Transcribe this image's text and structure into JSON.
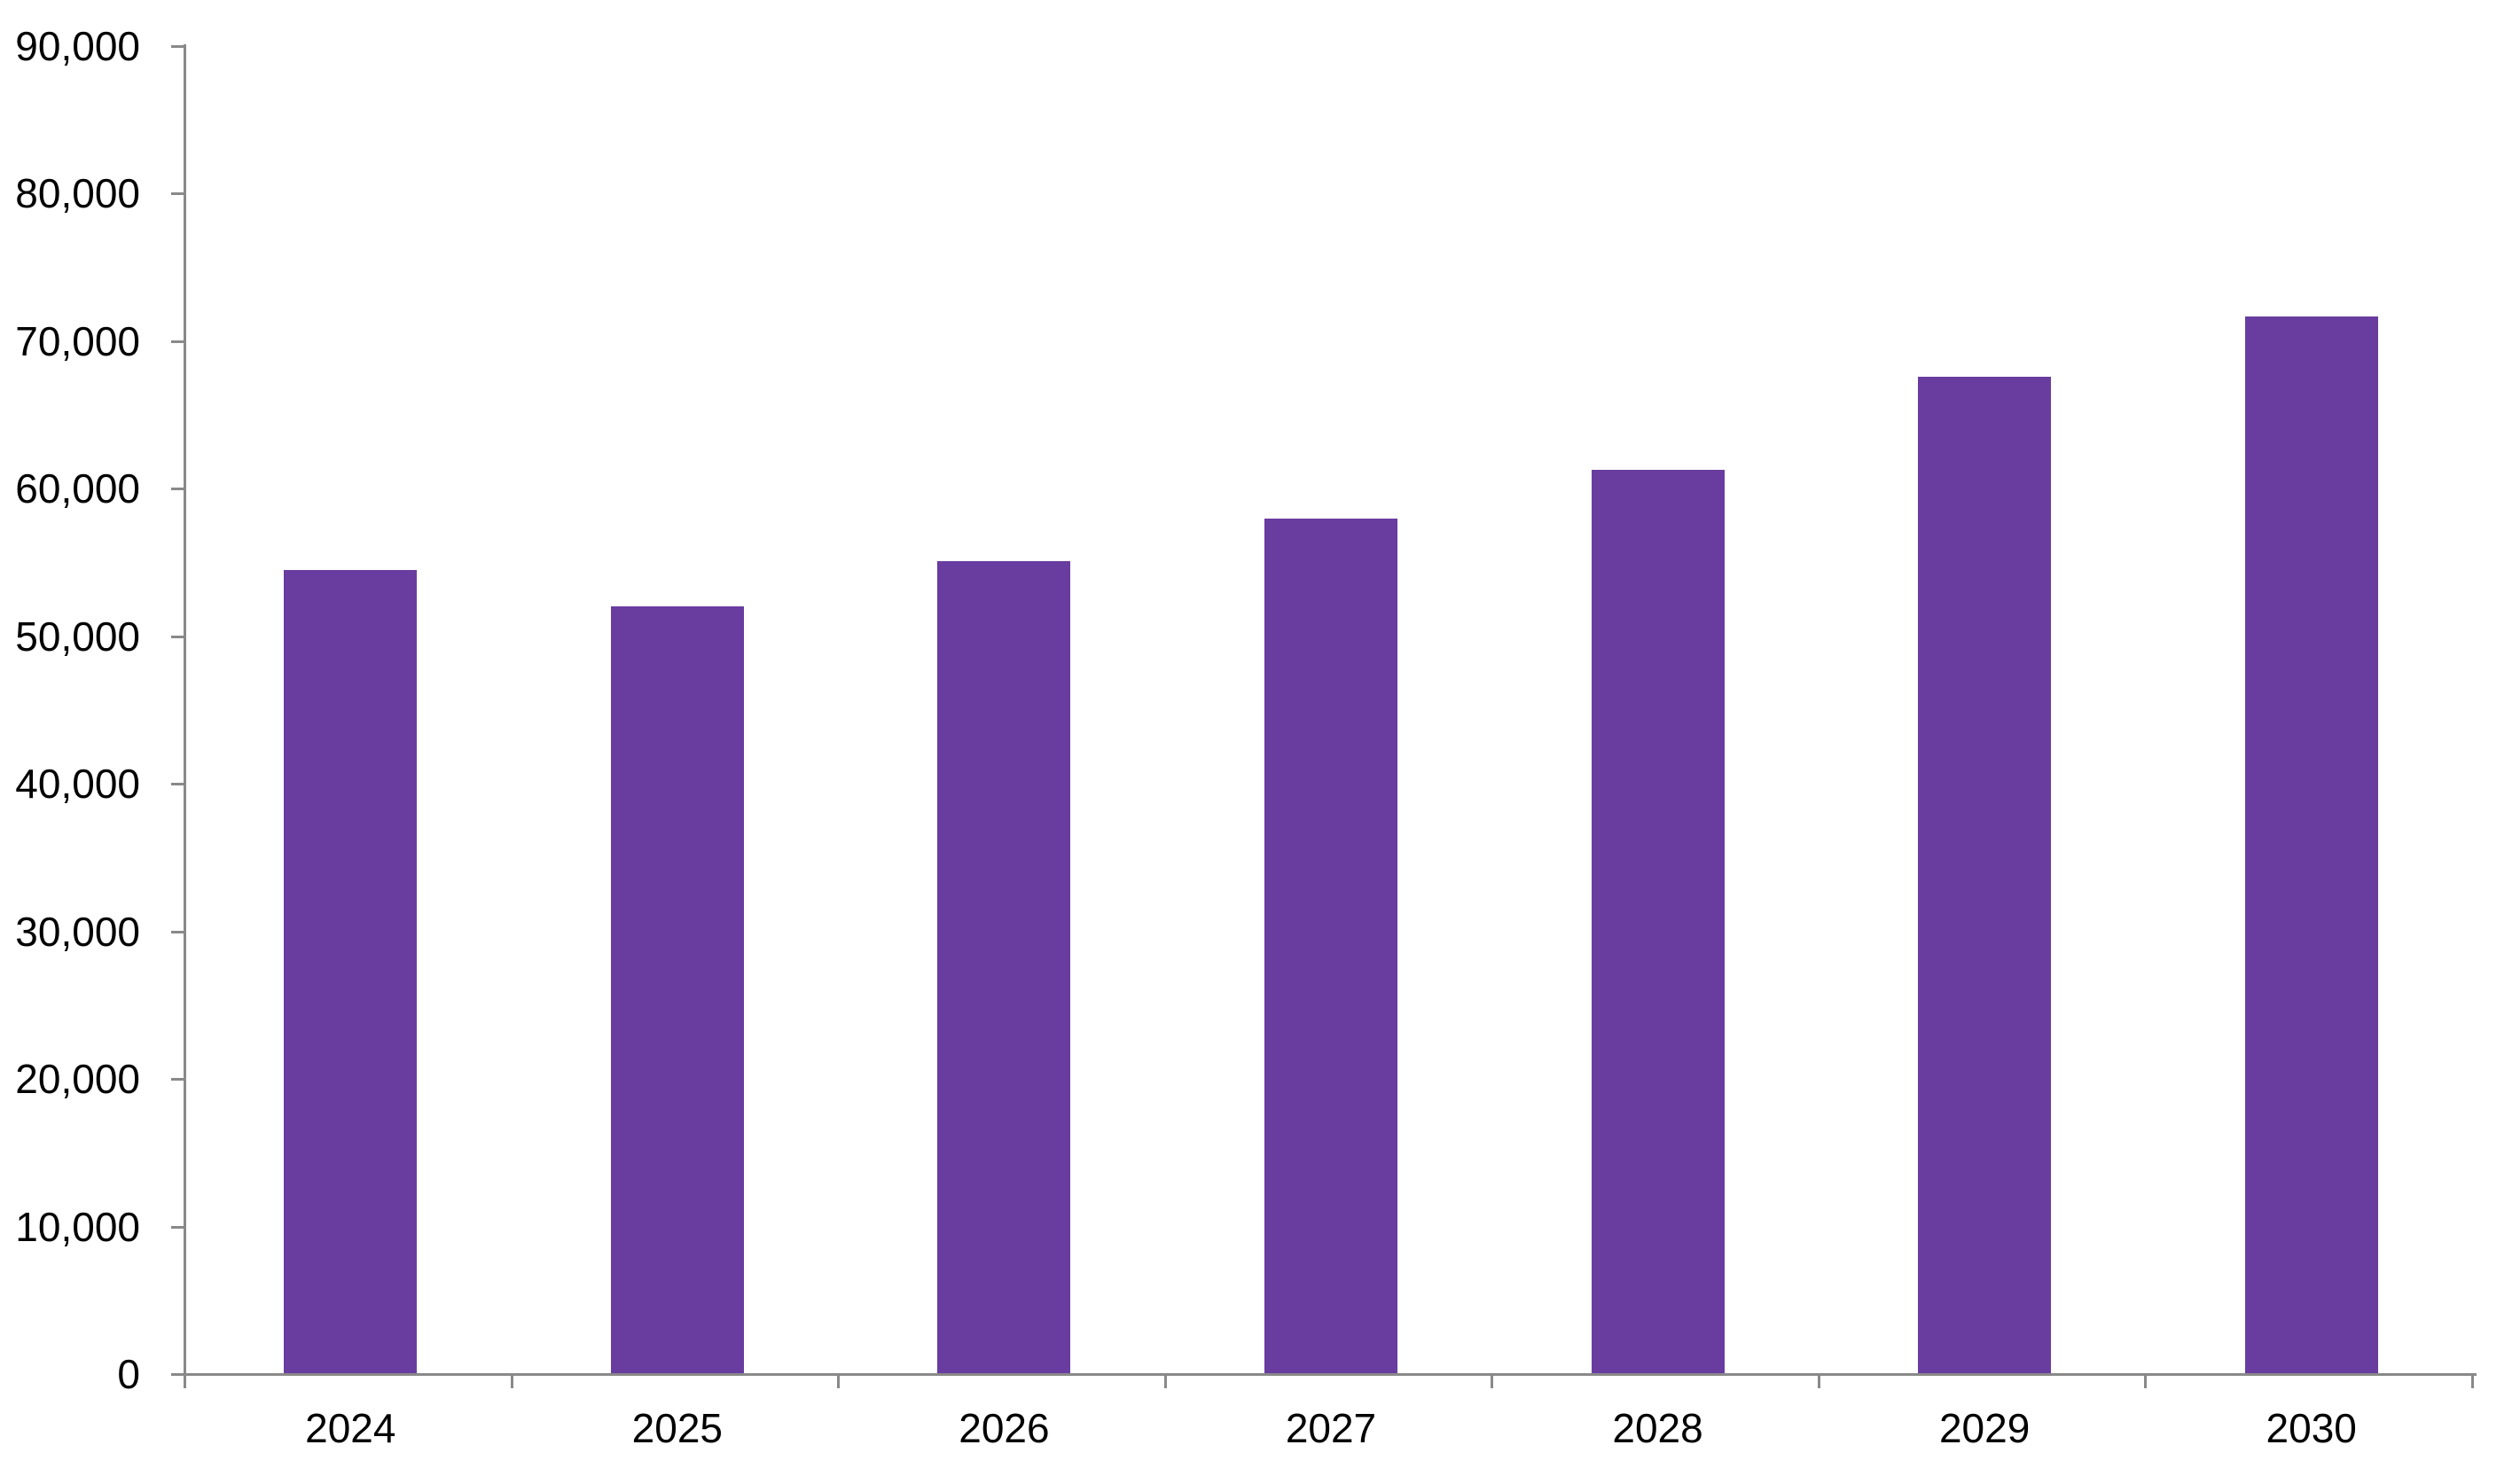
{
  "page": {
    "background": "#FFFFFF"
  },
  "chart_data": {
    "type": "bar",
    "title": "",
    "xlabel": "",
    "ylabel": "",
    "categories": [
      "2024",
      "2025",
      "2026",
      "2027",
      "2028",
      "2029",
      "2030"
    ],
    "values": [
      54500,
      52000,
      55100,
      58000,
      61300,
      67600,
      71700
    ],
    "ylim": [
      0,
      90000
    ],
    "ytick_interval": 10000,
    "ytick_labels": [
      "0",
      "10,000",
      "20,000",
      "30,000",
      "40,000",
      "50,000",
      "60,000",
      "70,000",
      "80,000",
      "90,000"
    ],
    "grid": false,
    "legend": "none",
    "colors": {
      "bar": "#693CA0",
      "axis": "#898989",
      "text": "#000000"
    }
  }
}
